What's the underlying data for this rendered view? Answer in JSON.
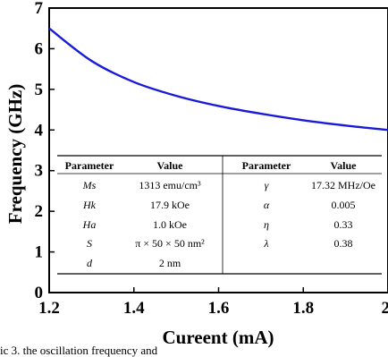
{
  "chart_data": {
    "type": "line",
    "xlabel": "Cureent (mA)",
    "ylabel": "Frequency (GHz)",
    "xlim": [
      1.2,
      2.0
    ],
    "ylim": [
      0,
      7
    ],
    "x_ticks": [
      "1.2",
      "1.4",
      "1.6",
      "1.8",
      "2"
    ],
    "y_ticks": [
      "0",
      "1",
      "2",
      "3",
      "4",
      "5",
      "6",
      "7"
    ],
    "grid": false,
    "series": [
      {
        "color": "#1a1adb",
        "x": [
          1.2,
          1.3,
          1.4,
          1.5,
          1.6,
          1.7,
          1.8,
          1.9,
          2.0
        ],
        "y": [
          6.5,
          5.7,
          5.18,
          4.84,
          4.59,
          4.4,
          4.24,
          4.11,
          4.0
        ]
      }
    ],
    "table": {
      "headers": [
        "Parameter",
        "Value",
        "Parameter",
        "Value"
      ],
      "rows": [
        [
          "Ms",
          "1313 emu/cm³",
          "γ",
          "17.32 MHz/Oe"
        ],
        [
          "Hk",
          "17.9 kOe",
          "α",
          "0.005"
        ],
        [
          "Ha",
          "1.0 kOe",
          "η",
          "0.33"
        ],
        [
          "S",
          "π × 50 × 50 nm²",
          "λ",
          "0.38"
        ],
        [
          "d",
          "2 nm",
          "",
          ""
        ]
      ]
    }
  },
  "caption": "ic 3. the oscillation frequency and"
}
